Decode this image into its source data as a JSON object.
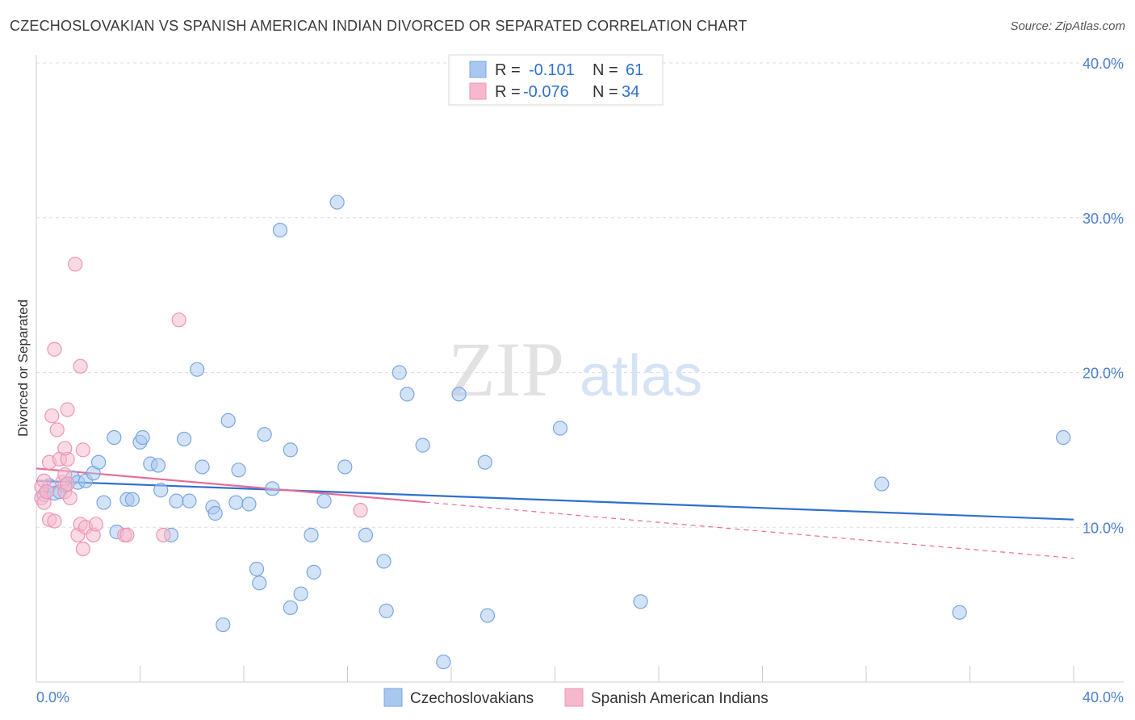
{
  "header": {
    "title": "CZECHOSLOVAKIAN VS SPANISH AMERICAN INDIAN DIVORCED OR SEPARATED CORRELATION CHART",
    "source": "Source: ZipAtlas.com"
  },
  "watermark": {
    "zip": "ZIP",
    "atlas": "atlas"
  },
  "legend": {
    "rows": [
      {
        "r_label": "R =",
        "r_value": "-0.101",
        "n_label": "N =",
        "n_value": "61"
      },
      {
        "r_label": "R =",
        "r_value": "-0.076",
        "n_label": "N =",
        "n_value": "34"
      }
    ]
  },
  "colors": {
    "blue_fill": "#a8c8f0",
    "blue_stroke": "#7aa6e0",
    "blue_line": "#2f6fcf",
    "pink_fill": "#f6b8cc",
    "pink_stroke": "#ee95b2",
    "pink_line": "#e86c96",
    "tick_text": "#4a7fd0",
    "grid": "#dddddd"
  },
  "chart_data": {
    "type": "scatter",
    "title": "CZECHOSLOVAKIAN VS SPANISH AMERICAN INDIAN DIVORCED OR SEPARATED CORRELATION CHART",
    "xlabel": "",
    "ylabel": "Divorced or Separated",
    "xlim": [
      0,
      40
    ],
    "ylim": [
      0,
      40
    ],
    "x_tick_labels": [
      "0.0%",
      "40.0%"
    ],
    "y_ticks": [
      10,
      20,
      30,
      40
    ],
    "y_tick_labels": [
      "10.0%",
      "20.0%",
      "30.0%",
      "40.0%"
    ],
    "grid": true,
    "legend_position": "top-center",
    "series": [
      {
        "name": "Czechoslovakians",
        "color": "#a8c8f0",
        "r": -0.101,
        "n": 61,
        "trend": {
          "x": [
            0,
            40
          ],
          "y": [
            13.0,
            10.5
          ]
        },
        "points": [
          [
            0.3,
            12.1
          ],
          [
            0.5,
            12.7
          ],
          [
            0.7,
            12.2
          ],
          [
            0.9,
            12.3
          ],
          [
            1.1,
            12.7
          ],
          [
            1.4,
            13.2
          ],
          [
            1.6,
            12.9
          ],
          [
            1.9,
            13.0
          ],
          [
            2.2,
            13.5
          ],
          [
            2.4,
            14.2
          ],
          [
            2.6,
            11.6
          ],
          [
            3.0,
            15.8
          ],
          [
            3.1,
            9.7
          ],
          [
            3.5,
            11.8
          ],
          [
            3.7,
            11.8
          ],
          [
            4.0,
            15.5
          ],
          [
            4.1,
            15.8
          ],
          [
            4.4,
            14.1
          ],
          [
            4.7,
            14.0
          ],
          [
            4.8,
            12.4
          ],
          [
            5.2,
            9.5
          ],
          [
            5.4,
            11.7
          ],
          [
            5.7,
            15.7
          ],
          [
            5.9,
            11.7
          ],
          [
            6.2,
            20.2
          ],
          [
            6.4,
            13.9
          ],
          [
            6.8,
            11.3
          ],
          [
            6.9,
            10.9
          ],
          [
            7.2,
            3.7
          ],
          [
            7.4,
            16.9
          ],
          [
            7.7,
            11.6
          ],
          [
            7.8,
            13.7
          ],
          [
            8.2,
            11.5
          ],
          [
            8.5,
            7.3
          ],
          [
            8.6,
            6.4
          ],
          [
            8.8,
            16.0
          ],
          [
            9.1,
            12.5
          ],
          [
            9.4,
            29.2
          ],
          [
            9.8,
            15.0
          ],
          [
            9.8,
            4.8
          ],
          [
            10.2,
            5.7
          ],
          [
            10.6,
            9.5
          ],
          [
            10.7,
            7.1
          ],
          [
            11.1,
            11.7
          ],
          [
            11.6,
            31.0
          ],
          [
            11.9,
            13.9
          ],
          [
            12.7,
            9.5
          ],
          [
            13.4,
            7.8
          ],
          [
            13.5,
            4.6
          ],
          [
            14.0,
            20.0
          ],
          [
            14.3,
            18.6
          ],
          [
            14.9,
            15.3
          ],
          [
            15.7,
            1.3
          ],
          [
            16.3,
            18.6
          ],
          [
            17.3,
            14.2
          ],
          [
            17.4,
            4.3
          ],
          [
            20.2,
            16.4
          ],
          [
            23.3,
            5.2
          ],
          [
            32.6,
            12.8
          ],
          [
            35.6,
            4.5
          ],
          [
            39.6,
            15.8
          ]
        ]
      },
      {
        "name": "Spanish American Indians",
        "color": "#f6b8cc",
        "r": -0.076,
        "n": 34,
        "trend": {
          "x": [
            0,
            40
          ],
          "y": [
            13.8,
            8.0
          ]
        },
        "trend_solid_to_x": 15.0,
        "points": [
          [
            0.2,
            12.6
          ],
          [
            0.2,
            11.9
          ],
          [
            0.3,
            13.0
          ],
          [
            0.3,
            11.6
          ],
          [
            0.4,
            12.3
          ],
          [
            0.5,
            14.2
          ],
          [
            0.5,
            10.5
          ],
          [
            0.6,
            17.2
          ],
          [
            0.7,
            10.4
          ],
          [
            0.7,
            21.5
          ],
          [
            0.8,
            16.3
          ],
          [
            0.9,
            14.4
          ],
          [
            1.0,
            12.9
          ],
          [
            1.1,
            13.4
          ],
          [
            1.1,
            12.3
          ],
          [
            1.2,
            14.4
          ],
          [
            1.1,
            15.1
          ],
          [
            1.2,
            12.8
          ],
          [
            1.2,
            17.6
          ],
          [
            1.3,
            11.9
          ],
          [
            1.5,
            27.0
          ],
          [
            1.6,
            9.5
          ],
          [
            1.7,
            10.2
          ],
          [
            1.7,
            20.4
          ],
          [
            1.8,
            15.0
          ],
          [
            1.8,
            8.6
          ],
          [
            1.9,
            10.0
          ],
          [
            2.2,
            9.5
          ],
          [
            2.3,
            10.2
          ],
          [
            3.4,
            9.5
          ],
          [
            3.5,
            9.5
          ],
          [
            4.9,
            9.5
          ],
          [
            5.5,
            23.4
          ],
          [
            12.5,
            11.1
          ]
        ]
      }
    ]
  }
}
